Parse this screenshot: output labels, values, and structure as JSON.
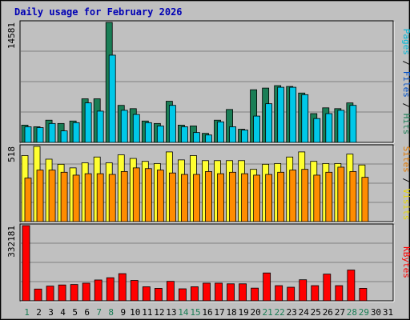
{
  "chart_data": {
    "type": "bar",
    "title": "Daily usage for February 2026",
    "x": [
      1,
      2,
      3,
      4,
      5,
      6,
      7,
      8,
      9,
      10,
      11,
      12,
      13,
      14,
      15,
      16,
      17,
      18,
      19,
      20,
      21,
      22,
      23,
      24,
      25,
      26,
      27,
      28,
      29,
      30,
      31
    ],
    "weekend_days": [
      1,
      7,
      8,
      14,
      15,
      21,
      22,
      28,
      29
    ],
    "panels": [
      {
        "id": "pages-files-hits",
        "max_label": "14581",
        "ymax": 14581,
        "right_label": [
          {
            "text": "Pages",
            "color": "#00b8d8"
          },
          {
            "text": " / ",
            "color": "#000000"
          },
          {
            "text": "Files",
            "color": "#0050c8"
          },
          {
            "text": " / ",
            "color": "#000000"
          },
          {
            "text": "Hits",
            "color": "#1a7e56"
          }
        ],
        "series": [
          {
            "name": "Hits",
            "color": "#1a7e56",
            "values": [
              2100,
              1900,
              2700,
              2300,
              2600,
              5300,
              5300,
              14581,
              4500,
              4100,
              2600,
              2300,
              5000,
              2100,
              2000,
              1100,
              2700,
              4000,
              1600,
              6400,
              6600,
              6900,
              6800,
              6000,
              3500,
              4200,
              4100,
              4800
            ]
          },
          {
            "name": "Files",
            "color": "#00c8e8",
            "values": [
              1900,
              1800,
              2300,
              1400,
              2400,
              4800,
              3800,
              10600,
              3900,
              3400,
              2400,
              2000,
              4500,
              1900,
              1200,
              900,
              2500,
              1900,
              1500,
              3200,
              4700,
              6700,
              6700,
              5800,
              2900,
              3500,
              3900,
              4500
            ]
          }
        ]
      },
      {
        "id": "sites-visits",
        "max_label": "518",
        "ymax": 518,
        "right_label": [
          {
            "text": "Sites",
            "color": "#e07800"
          },
          {
            "text": " / ",
            "color": "#000000"
          },
          {
            "text": "Visits",
            "color": "#e8d800"
          }
        ],
        "series": [
          {
            "name": "Visits",
            "color": "#ffff30",
            "values": [
              455,
              518,
              430,
              395,
              370,
              405,
              445,
              405,
              460,
              435,
              415,
              400,
              480,
              425,
              455,
              420,
              420,
              420,
              420,
              360,
              395,
              400,
              445,
              480,
              415,
              400,
              400,
              465,
              390
            ]
          },
          {
            "name": "Sites",
            "color": "#ff8c00",
            "values": [
              300,
              355,
              355,
              340,
              320,
              330,
              330,
              325,
              345,
              370,
              365,
              355,
              335,
              325,
              325,
              345,
              330,
              340,
              330,
              320,
              325,
              340,
              355,
              360,
              320,
              340,
              375,
              345,
              305
            ]
          }
        ]
      },
      {
        "id": "kbytes",
        "max_label": "332181",
        "ymax": 332181,
        "right_label": [
          {
            "text": "KBytes",
            "color": "#ff0000"
          }
        ],
        "series": [
          {
            "name": "KBytes",
            "color": "#ff0000",
            "values": [
              332181,
              52000,
              65000,
              70000,
              72000,
              78000,
              92000,
              102000,
              120000,
              90000,
              62000,
              55000,
              86000,
              53000,
              62000,
              78000,
              78000,
              75000,
              75000,
              56000,
              123000,
              67000,
              60000,
              93000,
              67000,
              118000,
              67000,
              136000,
              55000
            ]
          }
        ]
      }
    ]
  }
}
